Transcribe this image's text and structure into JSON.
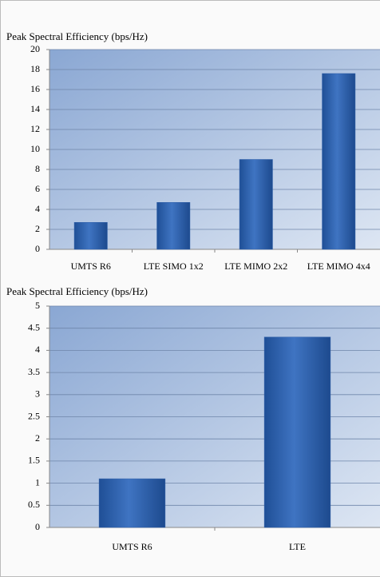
{
  "chart_data": [
    {
      "type": "bar",
      "title": "Peak Spectral Efficiency (bps/Hz)",
      "categories": [
        "UMTS R6",
        "LTE SIMO 1x2",
        "LTE MIMO 2x2",
        "LTE MIMO 4x4"
      ],
      "values": [
        2.7,
        4.7,
        9.0,
        17.6
      ],
      "color": "#2f5fa8",
      "ylim": [
        0,
        20
      ],
      "yticks": [
        0,
        2,
        4,
        6,
        8,
        10,
        12,
        14,
        16,
        18,
        20
      ],
      "grid": true
    },
    {
      "type": "bar",
      "title": "Peak Spectral Efficiency (bps/Hz)",
      "categories": [
        "UMTS R6",
        "LTE"
      ],
      "values": [
        1.1,
        4.3
      ],
      "color": "#2f5fa8",
      "ylim": [
        0,
        5
      ],
      "yticks": [
        0,
        0.5,
        1,
        1.5,
        2,
        2.5,
        3,
        3.5,
        4,
        4.5,
        5
      ],
      "grid": true
    }
  ]
}
